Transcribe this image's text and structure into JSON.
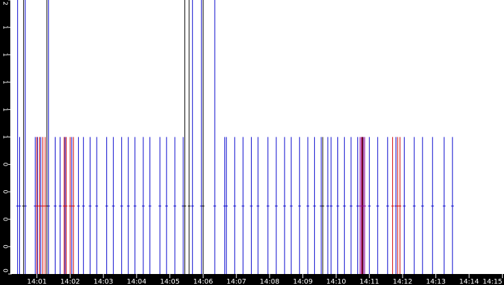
{
  "chart_data": {
    "type": "bar",
    "title": "",
    "xlabel": "",
    "ylabel": "",
    "y_tick_labels": [
      "2",
      "1",
      "1",
      "1",
      "1",
      "1",
      "0",
      "0",
      "0",
      "0",
      "0"
    ],
    "x_tick_labels": [
      "14:01",
      "14:02",
      "14:03",
      "14:04",
      "14:05",
      "14:06",
      "14:07",
      "14:08",
      "14:09",
      "14:10",
      "14:11",
      "14:12",
      "14:13",
      "14:14",
      "14:15"
    ],
    "x_tick_times_min": [
      1,
      2,
      3,
      4,
      5,
      6,
      7,
      8,
      9,
      10,
      11,
      12,
      13,
      14,
      15
    ],
    "xlim_min": [
      0.2,
      15.05
    ],
    "ylim": [
      0,
      2
    ],
    "grid": false,
    "colors": {
      "background": "#ffffff",
      "axis_band": "#000000",
      "tick_text": "#ffffff",
      "blue": "#0000cc",
      "red": "#cc0000",
      "black": "#000000",
      "purple": "#880099"
    },
    "series": [
      {
        "color": "blue",
        "points": [
          [
            0.42,
            2
          ],
          [
            0.48,
            1
          ],
          [
            0.65,
            2
          ],
          [
            0.95,
            1
          ],
          [
            1.02,
            1
          ],
          [
            1.12,
            1
          ],
          [
            1.35,
            2
          ],
          [
            1.55,
            1
          ],
          [
            1.7,
            1
          ],
          [
            1.85,
            1
          ],
          [
            2.05,
            1
          ],
          [
            2.25,
            1
          ],
          [
            2.4,
            1
          ],
          [
            2.6,
            1
          ],
          [
            2.8,
            1
          ],
          [
            3.1,
            1
          ],
          [
            3.3,
            1
          ],
          [
            3.55,
            1
          ],
          [
            3.75,
            1
          ],
          [
            3.95,
            1
          ],
          [
            4.2,
            1
          ],
          [
            4.4,
            1
          ],
          [
            4.7,
            1
          ],
          [
            4.9,
            1
          ],
          [
            5.15,
            1
          ],
          [
            5.4,
            1
          ],
          [
            5.68,
            2
          ],
          [
            5.95,
            2
          ],
          [
            6.35,
            2
          ],
          [
            6.65,
            1
          ],
          [
            6.7,
            1
          ],
          [
            6.95,
            1
          ],
          [
            7.2,
            1
          ],
          [
            7.45,
            1
          ],
          [
            7.65,
            1
          ],
          [
            7.95,
            1
          ],
          [
            8.2,
            1
          ],
          [
            8.45,
            1
          ],
          [
            8.65,
            1
          ],
          [
            8.9,
            1
          ],
          [
            9.15,
            1
          ],
          [
            9.35,
            1
          ],
          [
            9.55,
            1
          ],
          [
            9.75,
            1
          ],
          [
            9.85,
            1
          ],
          [
            10.05,
            1
          ],
          [
            10.25,
            1
          ],
          [
            10.45,
            1
          ],
          [
            10.65,
            1
          ],
          [
            11.0,
            1
          ],
          [
            11.25,
            1
          ],
          [
            11.55,
            1
          ],
          [
            11.8,
            1
          ],
          [
            12.05,
            1
          ],
          [
            12.35,
            1
          ],
          [
            12.6,
            1
          ],
          [
            12.9,
            1
          ],
          [
            13.25,
            1
          ],
          [
            13.5,
            1
          ]
        ]
      },
      {
        "color": "black",
        "points": [
          [
            0.6,
            2
          ],
          [
            1.3,
            2
          ],
          [
            5.45,
            2
          ],
          [
            5.58,
            2
          ],
          [
            6.0,
            2
          ],
          [
            9.6,
            1
          ],
          [
            10.8,
            1
          ]
        ]
      },
      {
        "color": "red",
        "points": [
          [
            1.0,
            1
          ],
          [
            1.08,
            1
          ],
          [
            1.18,
            1
          ],
          [
            1.25,
            1
          ],
          [
            1.82,
            1
          ],
          [
            1.88,
            1
          ],
          [
            2.0,
            1
          ],
          [
            2.1,
            1
          ],
          [
            10.78,
            1
          ],
          [
            11.7,
            1
          ],
          [
            11.85,
            1
          ],
          [
            11.92,
            1
          ]
        ]
      },
      {
        "color": "purple",
        "points": [
          [
            10.72,
            1
          ],
          [
            10.76,
            1
          ],
          [
            10.82,
            1
          ],
          [
            10.86,
            1
          ]
        ]
      }
    ]
  }
}
